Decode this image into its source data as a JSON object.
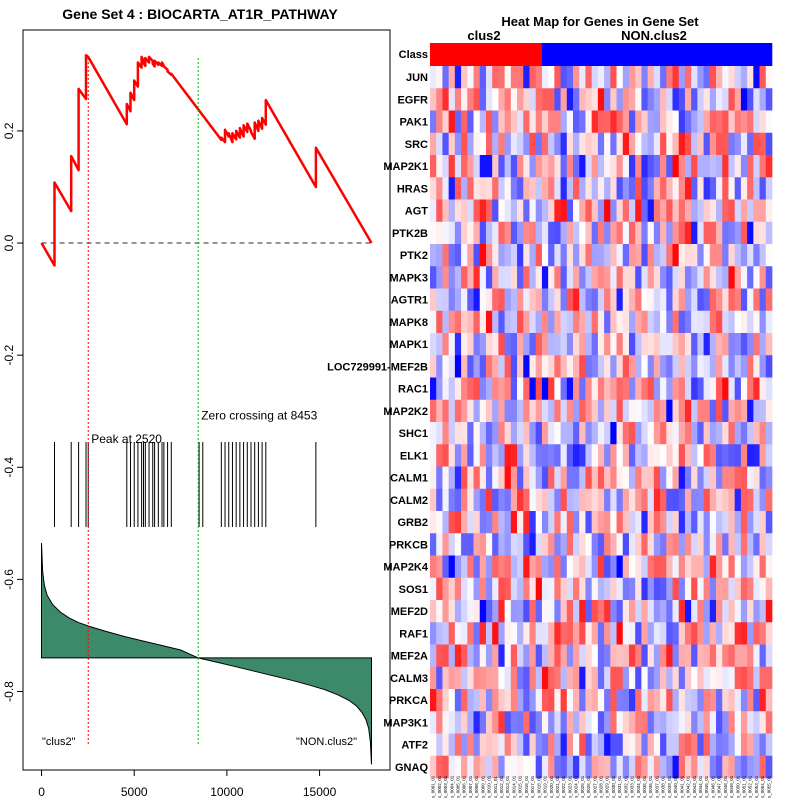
{
  "chart_data": [
    {
      "type": "line",
      "title": "Gene Set  4 : BIOCARTA_AT1R_PATHWAY",
      "xlim": [
        -1000,
        18800
      ],
      "ylim": [
        -0.94,
        0.38
      ],
      "x_ticks": [
        0,
        5000,
        10000,
        15000
      ],
      "x_tick_labels": [
        "0",
        "5000",
        "10000",
        "15000"
      ],
      "y_ticks": [
        0.2,
        0.0,
        -0.2,
        -0.4,
        -0.6,
        -0.8
      ],
      "y_tick_labels": [
        "0.2",
        "0.0",
        "-0.2",
        "-0.4",
        "-0.6",
        "-0.8"
      ],
      "enrichment_score_series": {
        "name": "running enrichment score",
        "color": "#ff0000",
        "x": [
          0,
          700,
          700,
          1600,
          1600,
          2000,
          2000,
          2400,
          2400,
          2520,
          2520,
          4600,
          4600,
          4800,
          4800,
          5000,
          5000,
          5200,
          5200,
          5400,
          5400,
          5500,
          5500,
          5600,
          5600,
          5800,
          5800,
          6000,
          6000,
          6100,
          6100,
          6300,
          6300,
          6500,
          6500,
          6600,
          6600,
          6800,
          6800,
          7000,
          7000,
          9700,
          9700,
          9900,
          9900,
          10100,
          10100,
          10300,
          10300,
          10500,
          10500,
          10700,
          10700,
          10900,
          10900,
          11100,
          11100,
          11300,
          11300,
          11500,
          11500,
          11700,
          11700,
          11900,
          11900,
          12100,
          12100,
          14800,
          14800,
          17800
        ],
        "y": [
          0.0,
          -0.04,
          0.108,
          0.057,
          0.155,
          0.13,
          0.275,
          0.257,
          0.335,
          0.332,
          0.332,
          0.212,
          0.248,
          0.235,
          0.268,
          0.255,
          0.29,
          0.279,
          0.322,
          0.313,
          0.332,
          0.325,
          0.322,
          0.316,
          0.33,
          0.322,
          0.332,
          0.325,
          0.32,
          0.315,
          0.325,
          0.318,
          0.322,
          0.316,
          0.322,
          0.316,
          0.315,
          0.309,
          0.306,
          0.3,
          0.302,
          0.184,
          0.188,
          0.18,
          0.202,
          0.19,
          0.196,
          0.18,
          0.196,
          0.185,
          0.2,
          0.188,
          0.205,
          0.19,
          0.21,
          0.198,
          0.213,
          0.2,
          0.198,
          0.186,
          0.215,
          0.2,
          0.218,
          0.204,
          0.223,
          0.211,
          0.255,
          0.1,
          0.17,
          0.0
        ]
      },
      "baseline": {
        "y": 0.0,
        "style": "dashed",
        "color": "#555555"
      },
      "gene_hit_positions": [
        700,
        1600,
        2000,
        2400,
        2520,
        4600,
        4800,
        5000,
        5200,
        5400,
        5500,
        5600,
        5800,
        6000,
        6100,
        6300,
        6500,
        6600,
        6800,
        7000,
        8500,
        8700,
        9700,
        9900,
        10100,
        10300,
        10500,
        10700,
        10900,
        11100,
        11300,
        11500,
        11700,
        11900,
        12100,
        14800
      ],
      "ranked_metric_area": {
        "color": "#3d8a6b",
        "baseline_y": -0.74,
        "x": [
          0,
          60,
          150,
          300,
          600,
          1000,
          1500,
          2000,
          2600,
          3500,
          4500,
          5500,
          6500,
          7500,
          8450,
          9500,
          10500,
          11500,
          12500,
          13500,
          14500,
          15300,
          16000,
          16600,
          17000,
          17300,
          17500,
          17650,
          17740,
          17800
        ],
        "y": [
          -0.535,
          -0.585,
          -0.61,
          -0.628,
          -0.645,
          -0.658,
          -0.669,
          -0.677,
          -0.684,
          -0.693,
          -0.702,
          -0.71,
          -0.718,
          -0.726,
          -0.74,
          -0.748,
          -0.756,
          -0.764,
          -0.772,
          -0.78,
          -0.789,
          -0.797,
          -0.806,
          -0.816,
          -0.826,
          -0.838,
          -0.85,
          -0.866,
          -0.89,
          -0.93
        ]
      },
      "annotations": [
        {
          "name": "peak",
          "label": "Peak at 2520",
          "x": 2520,
          "line_color": "#ff0000",
          "label_y": -0.357
        },
        {
          "name": "zero-crossing",
          "label": "Zero crossing at 8453",
          "x": 8453,
          "line_color": "#00bb00",
          "label_y": -0.315
        }
      ],
      "left_class_label": "\"clus2\"",
      "right_class_label": "\"NON.clus2\""
    },
    {
      "type": "heatmap",
      "title": "Heat Map for Genes in Gene Set",
      "class_row_label": "Class",
      "classes": [
        {
          "name": "clus2",
          "color": "#ff0000",
          "count": 18
        },
        {
          "name": "NON.clus2",
          "color": "#0000ff",
          "count": 37
        }
      ],
      "genes": [
        "JUN",
        "EGFR",
        "PAK1",
        "SRC",
        "MAP2K1",
        "HRAS",
        "AGT",
        "PTK2B",
        "PTK2",
        "MAPK3",
        "AGTR1",
        "MAPK8",
        "MAPK1",
        "LOC729991-MEF2B",
        "RAC1",
        "MAP2K2",
        "SHC1",
        "ELK1",
        "CALM1",
        "CALM2",
        "GRB2",
        "PRKCB",
        "MAP2K4",
        "SOS1",
        "MEF2D",
        "RAF1",
        "MEF2A",
        "CALM3",
        "PRKCA",
        "MAP3K1",
        "ATF2",
        "GNAQ"
      ],
      "n_samples": 55,
      "sample_labels": [
        "s_0001_01",
        "s_0002_01",
        "s_0003_01",
        "s_0004_01",
        "s_0005_01",
        "s_0006_01",
        "s_0007_01",
        "s_0008_01",
        "s_0009_01",
        "s_0010_01",
        "s_0011_01",
        "s_0012_01",
        "s_0013_01",
        "s_0014_01",
        "s_0015_01",
        "s_0016_01",
        "s_0017_01",
        "s_0018_01",
        "s_0019_01",
        "s_0020_01",
        "s_0021_01",
        "s_0022_01",
        "s_0023_01",
        "s_0024_01",
        "s_0025_01",
        "s_0026_01",
        "s_0027_01",
        "s_0028_01",
        "s_0029_01",
        "s_0030_01",
        "s_0031_01",
        "s_0032_01",
        "s_0033_01",
        "s_0034_01",
        "s_0035_01",
        "s_0036_01",
        "s_0037_01",
        "s_0038_01",
        "s_0039_01",
        "s_0040_01",
        "s_0041_01",
        "s_0042_01",
        "s_0043_01",
        "s_0044_01",
        "s_0045_01",
        "s_0046_01",
        "s_0047_01",
        "s_0048_01",
        "s_0049_01",
        "s_0050_01",
        "s_0051_01",
        "s_0052_01",
        "s_0053_01",
        "s_0054_01",
        "s_0055_01"
      ],
      "color_scale": {
        "low": "#0000ff",
        "mid": "#ffffff",
        "high": "#ff0000"
      },
      "value_range": [
        -1,
        1
      ]
    }
  ]
}
